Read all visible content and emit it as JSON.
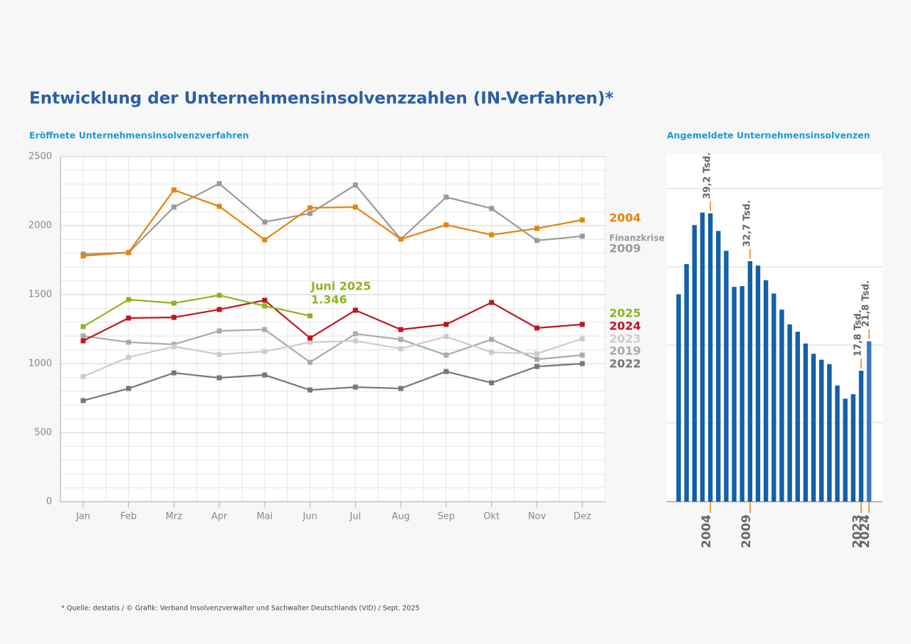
{
  "title": "Entwicklung der Unternehmensinsolvenzzahlen (IN-Verfahren)*",
  "footnote": "* Quelle: destatis / © Grafik: Verband Insolvenzverwalter und Sachwalter Deutschlands (VID) / Sept. 2025",
  "chart_data": [
    {
      "type": "line",
      "title": "Eröffnete Unternehmensinsolvenzverfahren",
      "categories": [
        "Jan",
        "Feb",
        "Mrz",
        "Apr",
        "Mai",
        "Jun",
        "Jul",
        "Aug",
        "Sep",
        "Okt",
        "Nov",
        "Dez"
      ],
      "ylim": [
        0,
        2500
      ],
      "yticks": [
        0,
        500,
        1000,
        1500,
        2000,
        2500
      ],
      "grid": true,
      "annotations": [
        "Juni 2025",
        "Finanzkrise"
      ],
      "series": [
        {
          "name": "2004",
          "color": "#e8820e",
          "values": [
            1780,
            1805,
            2258,
            2139,
            1897,
            2129,
            2134,
            1902,
            2005,
            1933,
            1979,
            2041
          ]
        },
        {
          "name": "2009",
          "color": "#9a9a9a",
          "values": [
            1794,
            1804,
            2134,
            2304,
            2026,
            2088,
            2294,
            1902,
            2206,
            2124,
            1892,
            1923
          ]
        },
        {
          "name": "2025",
          "color": "#8db41f",
          "values": [
            1268,
            1464,
            1438,
            1495,
            1418,
            1346,
            null,
            null,
            null,
            null,
            null,
            null
          ],
          "value_labels": [
            null,
            null,
            null,
            null,
            null,
            "1.346",
            null,
            null,
            null,
            null,
            null,
            null
          ]
        },
        {
          "name": "2024",
          "color": "#c0161e",
          "values": [
            1165,
            1330,
            1335,
            1392,
            1459,
            1186,
            1387,
            1247,
            1284,
            1443,
            1258,
            1284
          ]
        },
        {
          "name": "2023",
          "color": "#cccccc",
          "values": [
            907,
            1046,
            1124,
            1067,
            1088,
            1155,
            1165,
            1108,
            1196,
            1082,
            1072,
            1180
          ]
        },
        {
          "name": "2019",
          "color": "#aaaaaa",
          "values": [
            1201,
            1155,
            1139,
            1237,
            1247,
            1010,
            1216,
            1175,
            1062,
            1175,
            1031,
            1062
          ]
        },
        {
          "name": "2022",
          "color": "#777777",
          "values": [
            732,
            820,
            933,
            897,
            918,
            809,
            830,
            820,
            943,
            861,
            979,
            1000
          ]
        }
      ]
    },
    {
      "type": "bar",
      "title": "Angemeldete Unternehmensinsolvenzen",
      "categories": [
        null,
        null,
        null,
        null,
        "2004",
        null,
        null,
        null,
        null,
        "2009",
        null,
        null,
        null,
        null,
        null,
        null,
        null,
        null,
        null,
        null,
        null,
        null,
        null,
        "2023",
        "2024"
      ],
      "values": [
        28.2,
        32.3,
        37.6,
        39.3,
        39.2,
        36.8,
        34.1,
        29.2,
        29.3,
        32.7,
        32.1,
        30.1,
        28.3,
        26.1,
        24.1,
        23.1,
        21.5,
        20.1,
        19.3,
        18.7,
        15.8,
        14.0,
        14.6,
        17.8,
        21.8
      ],
      "value_labels": [
        null,
        null,
        null,
        null,
        "39,2 Tsd.",
        null,
        null,
        null,
        null,
        "32,7 Tsd.",
        null,
        null,
        null,
        null,
        null,
        null,
        null,
        null,
        null,
        null,
        null,
        null,
        null,
        "17,8 Tsd.",
        "21,8 Tsd."
      ],
      "color": "#1460a8",
      "highlight_color": "#3a76c4",
      "marker_color": "#e8820e",
      "ylim": [
        0,
        47.3
      ]
    }
  ]
}
